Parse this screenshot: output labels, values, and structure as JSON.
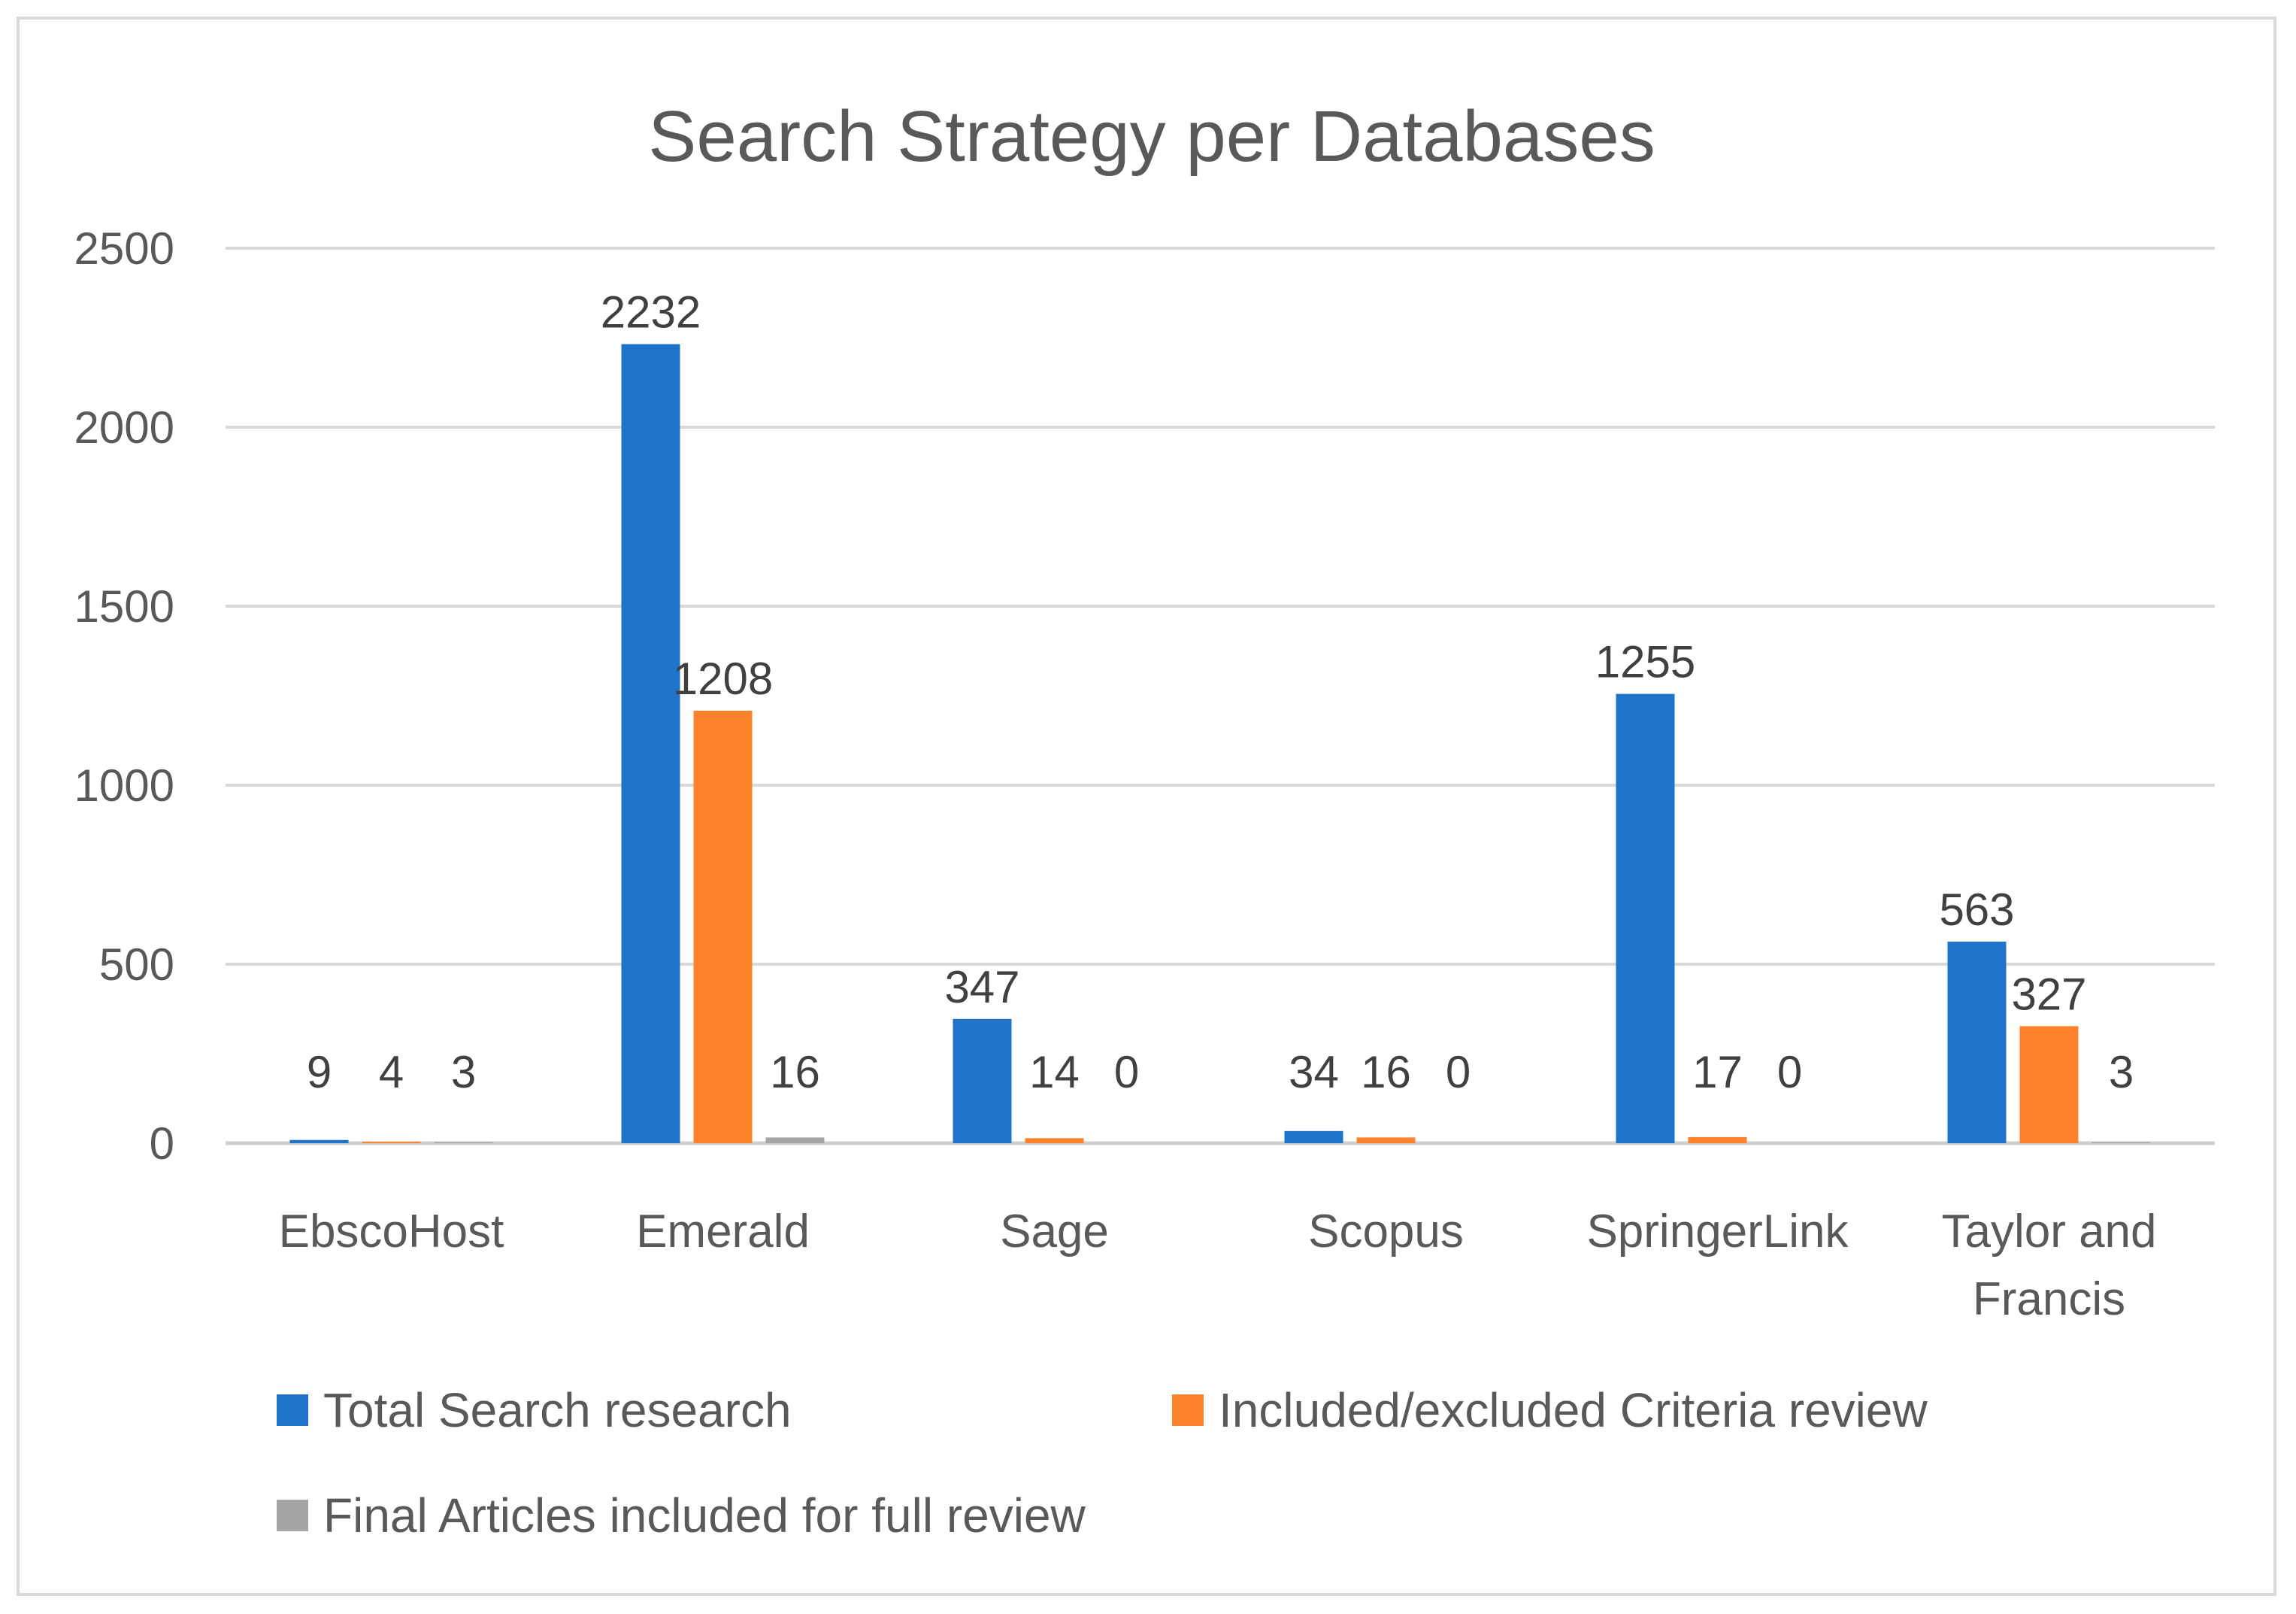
{
  "chart_data": {
    "type": "bar",
    "title": "Search Strategy per Databases",
    "xlabel": "",
    "ylabel": "",
    "ylim": [
      0,
      2500
    ],
    "yticks": [
      0,
      500,
      1000,
      1500,
      2000,
      2500
    ],
    "grid": true,
    "legend_position": "bottom",
    "categories": [
      [
        "EbscoHost"
      ],
      [
        "Emerald"
      ],
      [
        "Sage"
      ],
      [
        "Scopus"
      ],
      [
        "SpringerLink"
      ],
      [
        "Taylor and",
        "Francis"
      ]
    ],
    "series": [
      {
        "name": "Total Search research",
        "color": "#1f73cb",
        "values": [
          9,
          2232,
          347,
          34,
          1255,
          563
        ]
      },
      {
        "name": "Included/excluded Criteria review",
        "color": "#fd8229",
        "values": [
          4,
          1208,
          14,
          16,
          17,
          327
        ]
      },
      {
        "name": "Final Articles included for full review",
        "color": "#a5a5a5",
        "values": [
          3,
          16,
          0,
          0,
          0,
          3
        ]
      }
    ]
  }
}
